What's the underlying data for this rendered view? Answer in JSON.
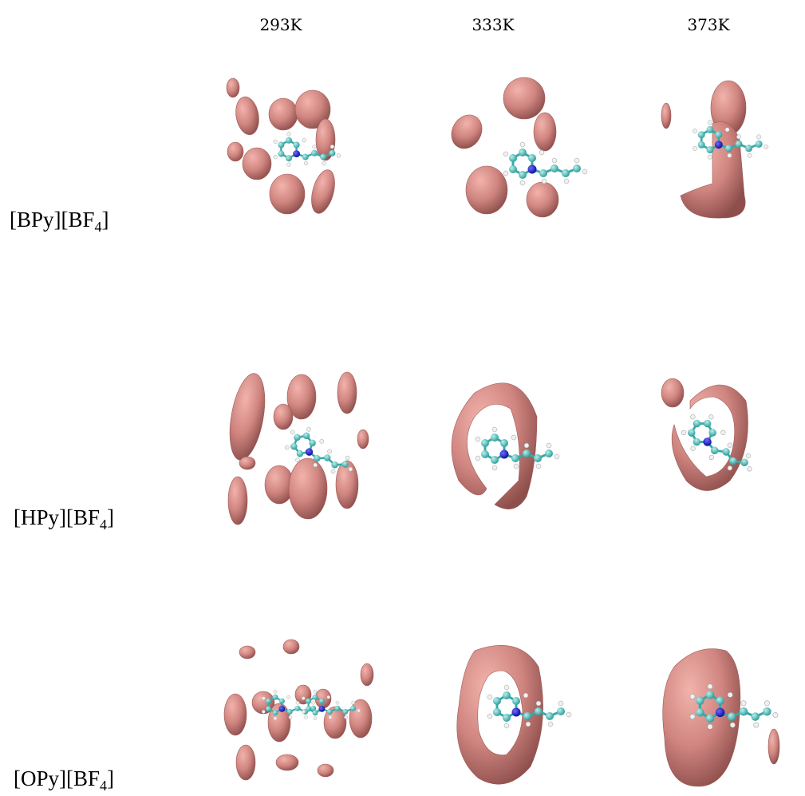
{
  "header": {
    "columns": [
      "293K",
      "333K",
      "373K"
    ]
  },
  "rows": [
    {
      "name": "[BPy][BF",
      "subscript": "4",
      "suffix": "]"
    },
    {
      "name": "[HPy][BF",
      "subscript": "4",
      "suffix": "]"
    },
    {
      "name": "[OPy][BF",
      "subscript": "4",
      "suffix": "]"
    }
  ]
}
